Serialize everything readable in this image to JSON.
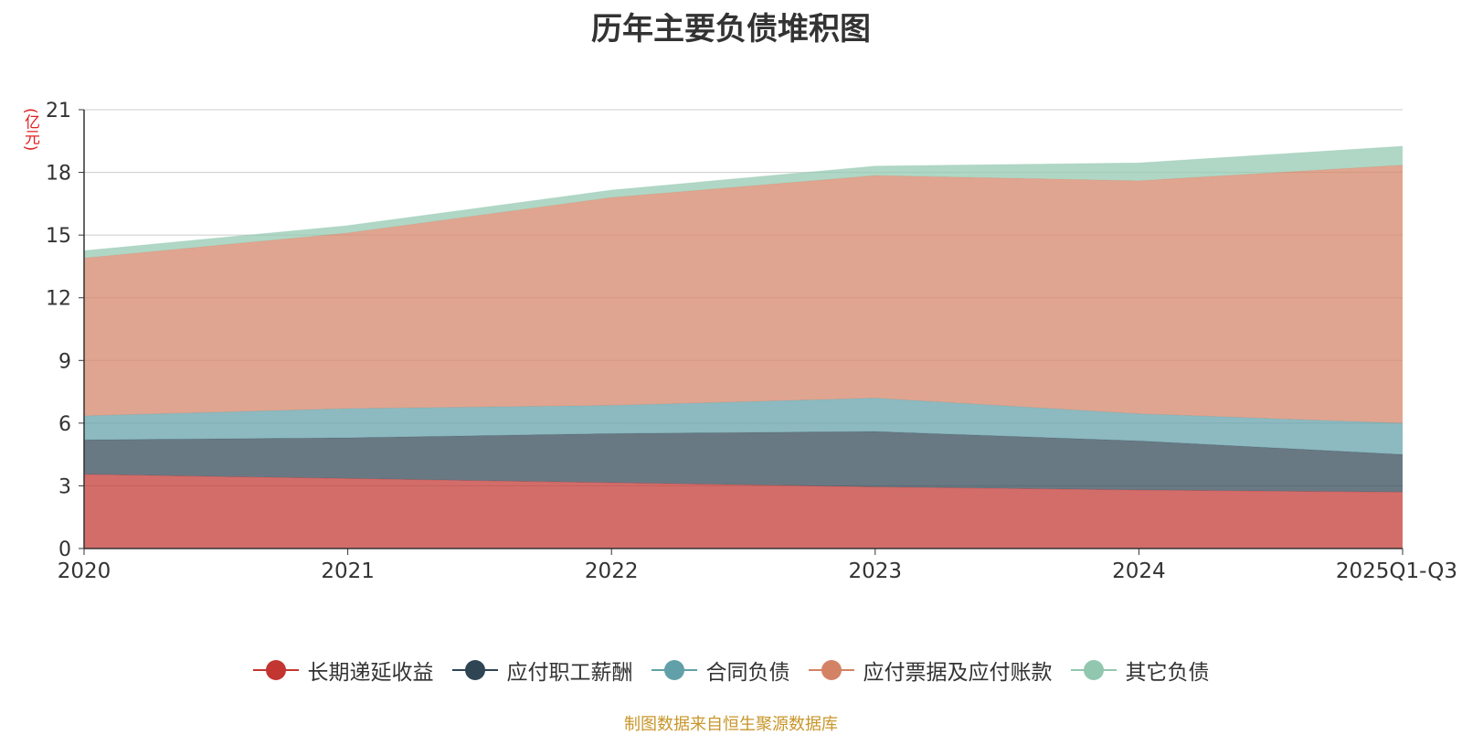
{
  "chart_data": {
    "type": "area",
    "stacked": true,
    "title": "历年主要负债堆积图",
    "ylabel": "(亿元)",
    "xlabel": "",
    "categories": [
      "2020",
      "2021",
      "2022",
      "2023",
      "2024",
      "2025Q1-Q3"
    ],
    "ylim": [
      0,
      21
    ],
    "yticks": [
      0,
      3,
      6,
      9,
      12,
      15,
      18,
      21
    ],
    "grid": true,
    "legend_position": "bottom",
    "series": [
      {
        "name": "长期递延收益",
        "color": "#c23531",
        "values": [
          3.55,
          3.35,
          3.15,
          2.95,
          2.8,
          2.7
        ]
      },
      {
        "name": "应付职工薪酬",
        "color": "#2f4554",
        "values": [
          1.65,
          1.95,
          2.35,
          2.65,
          2.35,
          1.8
        ]
      },
      {
        "name": "合同负债",
        "color": "#61a0a8",
        "values": [
          1.15,
          1.4,
          1.35,
          1.6,
          1.3,
          1.5
        ]
      },
      {
        "name": "应付票据及应付账款",
        "color": "#d48265",
        "values": [
          7.55,
          8.4,
          9.95,
          10.65,
          11.15,
          12.35
        ]
      },
      {
        "name": "其它负债",
        "color": "#91c7ae",
        "values": [
          0.35,
          0.35,
          0.35,
          0.45,
          0.85,
          0.9
        ]
      }
    ]
  },
  "source_note": "制图数据来自恒生聚源数据库"
}
